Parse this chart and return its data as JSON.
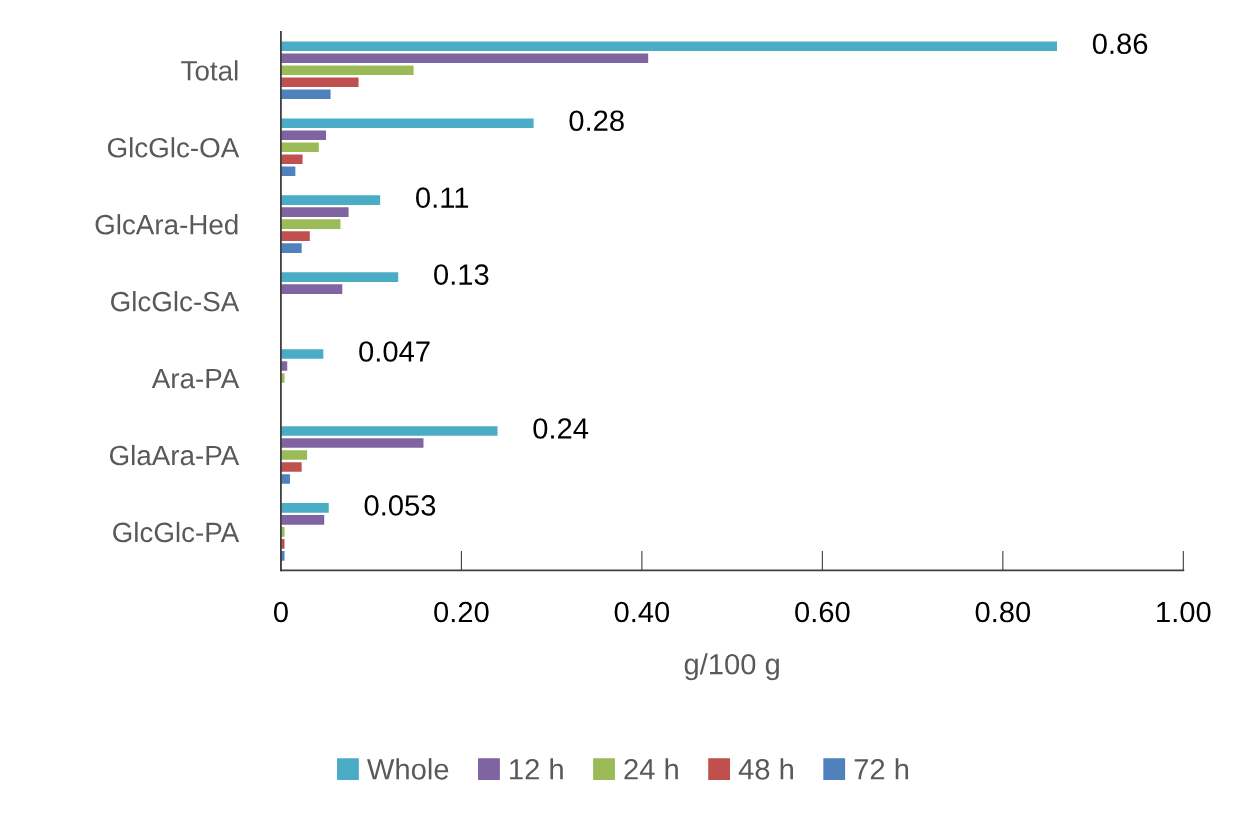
{
  "chart_data": {
    "type": "bar",
    "orientation": "horizontal",
    "xlabel": "g/100 g",
    "categories": [
      "Total",
      "GlcGlc-OA",
      "GlcAra-Hed",
      "GlcGlc-SA",
      "Ara-PA",
      "GlaAra-PA",
      "GlcGlc-PA"
    ],
    "series": [
      {
        "name": "Whole",
        "color": "#4bacc6",
        "values": [
          0.86,
          0.28,
          0.11,
          0.13,
          0.047,
          0.24,
          0.053
        ],
        "value_labels": [
          "0.86",
          "0.28",
          "0.11",
          "0.13",
          "0.047",
          "0.24",
          "0.053"
        ]
      },
      {
        "name": "12 h",
        "color": "#8064a2",
        "values": [
          0.407,
          0.05,
          0.075,
          0.068,
          0.007,
          0.158,
          0.048
        ]
      },
      {
        "name": "24 h",
        "color": "#9bbb59",
        "values": [
          0.147,
          0.042,
          0.066,
          null,
          0.004,
          0.029,
          0.004
        ]
      },
      {
        "name": "48 h",
        "color": "#c0504d",
        "values": [
          0.086,
          0.024,
          0.032,
          null,
          null,
          0.023,
          0.004
        ]
      },
      {
        "name": "72 h",
        "color": "#4f81bd",
        "values": [
          0.055,
          0.016,
          0.023,
          null,
          null,
          0.01,
          0.004
        ]
      }
    ],
    "xlim": [
      0,
      1.0
    ],
    "xticks": [
      0,
      {
        "value": 0.2,
        "label": "0.20"
      },
      {
        "value": 0.4,
        "label": "0.40"
      },
      {
        "value": 0.6,
        "label": "0.60"
      },
      {
        "value": 0.8,
        "label": "0.80"
      },
      {
        "value": 1.0,
        "label": "1.00"
      }
    ],
    "grid": false,
    "legend": "bottom"
  }
}
